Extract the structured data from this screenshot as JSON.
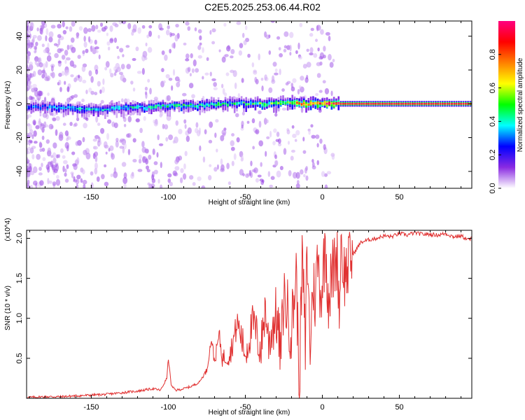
{
  "title": "C2E5.2025.253.06.44.R02",
  "colors": {
    "line": "#e03030",
    "frame": "#000000"
  },
  "chart_data": [
    {
      "type": "heatmap",
      "name": "spectrogram",
      "xlabel": "Height of straight line (km)",
      "ylabel": "Frequency (Hz)",
      "xlim": [
        -192,
        97
      ],
      "ylim": [
        -50,
        49
      ],
      "xticks": [
        -150,
        -100,
        -50,
        0,
        50
      ],
      "yticks": [
        -40,
        -20,
        0,
        20,
        40
      ],
      "colorbar": {
        "label": "Normalized spectral amplitude",
        "range": [
          0,
          1
        ],
        "ticks": [
          0.0,
          0.2,
          0.4,
          0.6,
          0.8
        ],
        "tick_labels": [
          "0.0",
          "0.2",
          "0.4",
          "0.6",
          "0.8"
        ],
        "colormap": [
          "#ffffff",
          "#8a2be2",
          "#0000ff",
          "#00ffff",
          "#00ff00",
          "#ffff00",
          "#ff8000",
          "#ff0000",
          "#ff0080"
        ]
      },
      "band": [
        {
          "x": -185,
          "f": -2,
          "amp": 0.3
        },
        {
          "x": -170,
          "f": -2,
          "amp": 0.35
        },
        {
          "x": -155,
          "f": -3,
          "amp": 0.4
        },
        {
          "x": -140,
          "f": -3,
          "amp": 0.4
        },
        {
          "x": -125,
          "f": -2,
          "amp": 0.4
        },
        {
          "x": -110,
          "f": -2,
          "amp": 0.42
        },
        {
          "x": -95,
          "f": -1,
          "amp": 0.45
        },
        {
          "x": -80,
          "f": -1,
          "amp": 0.45
        },
        {
          "x": -65,
          "f": 0,
          "amp": 0.45
        },
        {
          "x": -50,
          "f": 0,
          "amp": 0.48
        },
        {
          "x": -35,
          "f": 0,
          "amp": 0.5
        },
        {
          "x": -20,
          "f": 1,
          "amp": 0.6
        },
        {
          "x": -10,
          "f": 0,
          "amp": 0.85
        },
        {
          "x": 0,
          "f": 0,
          "amp": 0.9
        },
        {
          "x": 10,
          "f": 0,
          "amp": 0.95
        },
        {
          "x": 30,
          "f": 0,
          "amp": 0.98
        },
        {
          "x": 60,
          "f": 0,
          "amp": 0.98
        },
        {
          "x": 95,
          "f": 0,
          "amp": 0.98
        }
      ]
    },
    {
      "type": "line",
      "name": "snr",
      "xlabel": "Height of straight line (km)",
      "ylabel": "SNR (10 * v/v)",
      "y_multiplier": "(x10^4)",
      "xlim": [
        -192,
        97
      ],
      "ylim": [
        0,
        2.1
      ],
      "xticks": [
        -150,
        -100,
        -50,
        0,
        50
      ],
      "yticks": [
        0.5,
        1.0,
        1.5,
        2.0
      ],
      "ytick_labels": [
        "0.5",
        "1.0",
        "1.5",
        "2.0"
      ],
      "x": [
        -192,
        -180,
        -170,
        -160,
        -150,
        -140,
        -130,
        -120,
        -110,
        -105,
        -101,
        -100,
        -98,
        -95,
        -90,
        -85,
        -80,
        -75,
        -72,
        -70,
        -67,
        -65,
        -60,
        -55,
        -50,
        -45,
        -40,
        -37,
        -35,
        -30,
        -27,
        -25,
        -20,
        -17,
        -15,
        -13,
        -11,
        -10,
        -8,
        -6,
        -5,
        -3,
        -1,
        0,
        2,
        4,
        6,
        8,
        10,
        11,
        12,
        14,
        16,
        18,
        20,
        25,
        30,
        35,
        40,
        45,
        50,
        55,
        60,
        65,
        70,
        75,
        80,
        85,
        90,
        95,
        97
      ],
      "y": [
        0.01,
        0.02,
        0.02,
        0.03,
        0.04,
        0.05,
        0.07,
        0.09,
        0.12,
        0.1,
        0.25,
        0.5,
        0.15,
        0.1,
        0.12,
        0.15,
        0.2,
        0.35,
        0.75,
        0.45,
        0.8,
        0.5,
        0.55,
        0.95,
        0.55,
        0.95,
        0.6,
        1.15,
        0.7,
        1.05,
        0.55,
        1.3,
        0.85,
        1.6,
        0.1,
        1.8,
        0.55,
        1.95,
        0.6,
        1.5,
        1.2,
        1.75,
        1.3,
        1.45,
        1.95,
        1.25,
        1.5,
        1.7,
        1.8,
        1.0,
        2.0,
        1.55,
        1.6,
        1.75,
        1.8,
        1.95,
        1.98,
        2.0,
        2.03,
        2.02,
        2.06,
        2.04,
        2.07,
        2.05,
        2.05,
        2.04,
        2.06,
        2.02,
        2.03,
        1.98,
        2.0
      ]
    }
  ]
}
